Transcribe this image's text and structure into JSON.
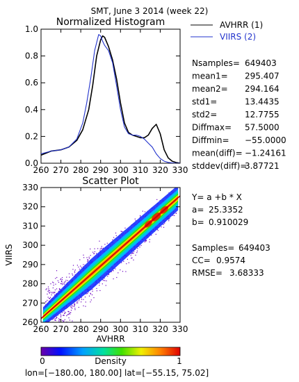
{
  "header": {
    "title": "SMT,  June 3 2014 (week 22)"
  },
  "colors": {
    "avhrr": "#000000",
    "viirs": "#2233cc",
    "fit_line": "#cc0000"
  },
  "histogram_stats": [
    {
      "label": "Nsamples=",
      "value": "649403"
    },
    {
      "label": "mean1=",
      "value": "295.407"
    },
    {
      "label": "mean2=",
      "value": "294.164"
    },
    {
      "label": "std1=",
      "value": "13.4435"
    },
    {
      "label": "std2=",
      "value": "12.7755"
    },
    {
      "label": "Diffmax=",
      "value": "57.5000"
    },
    {
      "label": "Diffmin=",
      "value": "−55.0000"
    },
    {
      "label": "mean(diff)=",
      "value": "−1.24161"
    },
    {
      "label": "stddev(diff)=",
      "value": "3.87721"
    }
  ],
  "regression": {
    "equation": "Y= a +b * X",
    "a_label": "a=",
    "a_value": "25.3352",
    "b_label": "b=",
    "b_value": "0.910029",
    "samples_label": "Samples=",
    "samples_value": "649403",
    "cc_label": "CC=",
    "cc_value": "0.9574",
    "rmse_label": "RMSE=",
    "rmse_value": "3.68333"
  },
  "colorbar": {
    "title": "Density",
    "min_label": "0",
    "max_label": "1"
  },
  "footer": {
    "lon_lat": "lon=[−180.00, 180.00] lat=[−55.15, 75.02]"
  },
  "chart_data": [
    {
      "type": "line",
      "title": "Normalized Histogram",
      "xlim": [
        260,
        330
      ],
      "ylim": [
        0,
        1
      ],
      "xticks": [
        "260",
        "270",
        "280",
        "290",
        "300",
        "310",
        "320",
        "330"
      ],
      "yticks": [
        "0.0",
        "0.2",
        "0.4",
        "0.6",
        "0.8",
        "1.0"
      ],
      "legend_placement": "right",
      "series": [
        {
          "name": "AVHRR (1)",
          "color": "#000000",
          "x": [
            260,
            265,
            270,
            274,
            278,
            281,
            284,
            286,
            288,
            290,
            291,
            292,
            294,
            296,
            298,
            300,
            302,
            304,
            306,
            308,
            310,
            312,
            314,
            316,
            318,
            320,
            322,
            324,
            326,
            328,
            330
          ],
          "y": [
            0.06,
            0.09,
            0.1,
            0.12,
            0.17,
            0.25,
            0.4,
            0.58,
            0.8,
            0.92,
            0.95,
            0.94,
            0.87,
            0.77,
            0.63,
            0.45,
            0.3,
            0.23,
            0.21,
            0.2,
            0.19,
            0.19,
            0.21,
            0.26,
            0.29,
            0.22,
            0.1,
            0.04,
            0.015,
            0.005,
            0.0
          ]
        },
        {
          "name": "VIIRS (2)",
          "color": "#2233cc",
          "x": [
            260,
            265,
            270,
            274,
            278,
            281,
            283,
            285,
            287,
            289,
            290,
            291,
            292,
            294,
            296,
            298,
            300,
            302,
            304,
            306,
            308,
            310,
            312,
            314,
            316,
            318,
            320,
            322,
            324,
            326,
            328,
            330
          ],
          "y": [
            0.07,
            0.09,
            0.1,
            0.12,
            0.18,
            0.3,
            0.45,
            0.63,
            0.84,
            0.96,
            0.95,
            0.91,
            0.88,
            0.84,
            0.75,
            0.58,
            0.4,
            0.27,
            0.22,
            0.21,
            0.21,
            0.2,
            0.18,
            0.15,
            0.12,
            0.07,
            0.035,
            0.015,
            0.006,
            0.002,
            0.0,
            0.0
          ]
        }
      ]
    },
    {
      "type": "heatmap",
      "title": "Scatter Plot",
      "xlabel": "AVHRR",
      "ylabel": "VIIRS",
      "xlim": [
        260,
        330
      ],
      "ylim": [
        260,
        330
      ],
      "xticks": [
        "260",
        "270",
        "280",
        "290",
        "300",
        "310",
        "320",
        "330"
      ],
      "yticks": [
        "260",
        "270",
        "280",
        "290",
        "300",
        "310",
        "320",
        "330"
      ],
      "colorscale": "rainbow (0 = violet, 1 = red)",
      "fit_line": {
        "a": 25.3352,
        "b": 0.910029
      }
    }
  ]
}
